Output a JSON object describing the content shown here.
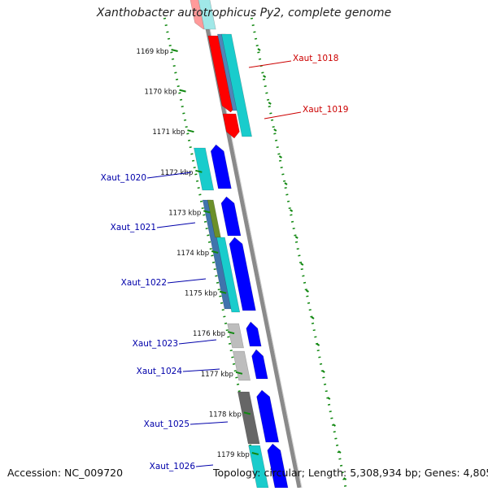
{
  "title": "Xanthobacter autotrophicus Py2, complete genome",
  "footer": {
    "accession": "Accession: NC_009720",
    "summary": "Topology: circular; Length: 5,308,934 bp; Genes: 4,805"
  },
  "ticks": [
    "1169 kbp",
    "1170 kbp",
    "1171 kbp",
    "1172 kbp",
    "1173 kbp",
    "1174 kbp",
    "1175 kbp",
    "1176 kbp",
    "1177 kbp",
    "1178 kbp",
    "1179 kbp"
  ],
  "genes_right": [
    "Xaut_1018",
    "Xaut_1019"
  ],
  "genes_left": [
    "Xaut_1020",
    "Xaut_1021",
    "Xaut_1022",
    "Xaut_1023",
    "Xaut_1024",
    "Xaut_1025",
    "Xaut_1026"
  ],
  "colors": {
    "forward_cds": "#ff0000",
    "reverse_cds": "#0000ff",
    "label_forward": "#cc0000",
    "label_reverse": "#0000aa",
    "cyan_feature": "#19cccc",
    "backbone": "#8a8a8a",
    "tick_green": "#118811"
  }
}
